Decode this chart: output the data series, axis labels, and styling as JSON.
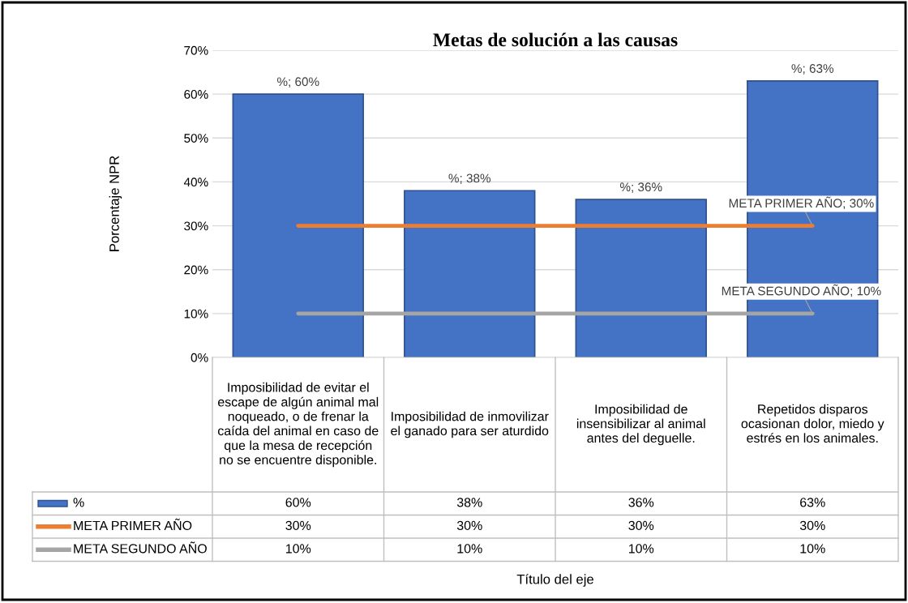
{
  "chart_data": {
    "type": "bar",
    "title": "Metas de solución a las causas",
    "ylabel": "Porcentaje NPR",
    "categories": [
      "Imposibilidad de evitar el escape de algún animal mal noqueado, o de frenar la caída del animal en caso de que la mesa de recepción no se encuentre disponible.",
      "Imposibilidad de inmovilizar el ganado para ser aturdido",
      "Imposibilidad de insensibilizar al animal antes del deguelle.",
      "Repetidos disparos ocasionan dolor, miedo y estrés en los animales."
    ],
    "series": [
      {
        "name": "%",
        "color": "#4472c4",
        "values": [
          60,
          38,
          36,
          63
        ],
        "value_labels": [
          "60%",
          "38%",
          "36%",
          "63%"
        ]
      },
      {
        "name": "META PRIMER AÑO",
        "type": "line",
        "color": "#ed7d31",
        "values": [
          30,
          30,
          30,
          30
        ],
        "value_labels": [
          "30%",
          "30%",
          "30%",
          "30%"
        ]
      },
      {
        "name": "META SEGUNDO AÑO",
        "type": "line",
        "color": "#a5a5a5",
        "values": [
          10,
          10,
          10,
          10
        ],
        "value_labels": [
          "10%",
          "10%",
          "10%",
          "10%"
        ]
      }
    ],
    "annotations": [
      "Título del eje",
      {
        "text": "%; 60%",
        "x": "Imposibilidad de evitar el escape de algún animal mal noqueado, o de frenar la caída del animal en caso de que la mesa de recepción no se encuentre disponible.",
        "y": 60
      },
      {
        "text": "%; 38%",
        "x": "Imposibilidad de inmovilizar el ganado para ser aturdido",
        "y": 38
      },
      {
        "text": "%; 36%",
        "x": "Imposibilidad de insensibilizar al animal antes del deguelle.",
        "y": 36
      },
      {
        "text": "%; 63%",
        "x": "Repetidos disparos ocasionan dolor, miedo y estrés en los animales.",
        "y": 63
      },
      {
        "text": "META PRIMER AÑO; 30%",
        "x": "Repetidos disparos ocasionan dolor, miedo y estrés en los animales.",
        "y": 30
      },
      {
        "text": "META SEGUNDO AÑO; 10%",
        "x": "Repetidos disparos ocasionan dolor, miedo y estrés en los animales.",
        "y": 10
      }
    ],
    "ylim": [
      0,
      70
    ],
    "yticks": [
      {
        "value": 0,
        "label": "0%"
      },
      {
        "value": 10,
        "label": "10%"
      },
      {
        "value": 20,
        "label": "20%"
      },
      {
        "value": 30,
        "label": "30%"
      },
      {
        "value": 40,
        "label": "40%"
      },
      {
        "value": 50,
        "label": "50%"
      },
      {
        "value": 60,
        "label": "60%"
      },
      {
        "value": 70,
        "label": "70%"
      }
    ],
    "grid": "y",
    "legend": "bottom"
  }
}
